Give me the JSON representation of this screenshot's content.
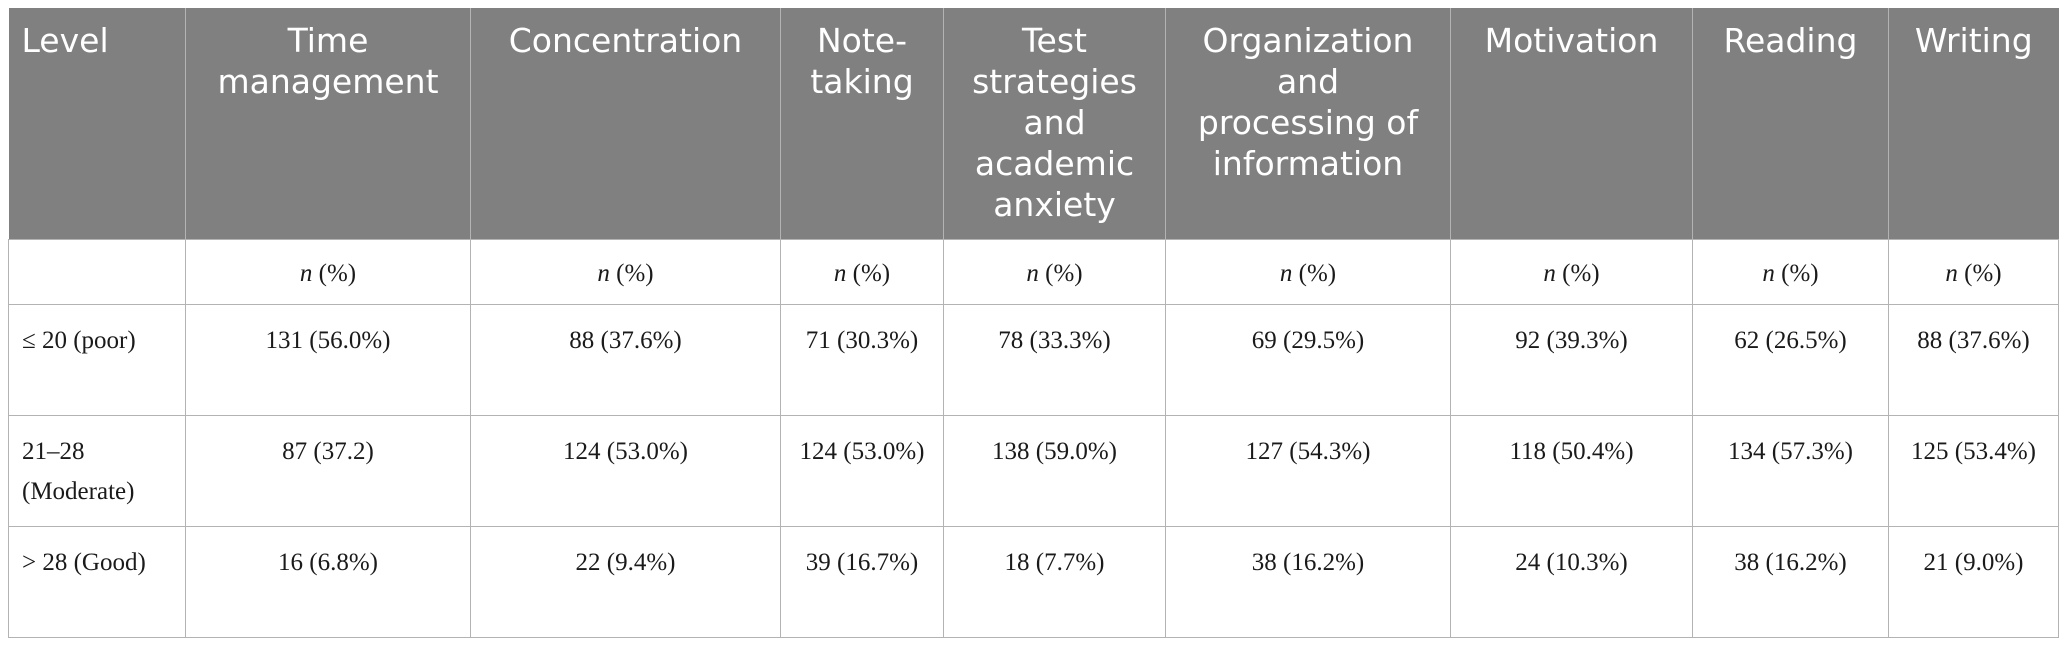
{
  "table": {
    "headers": [
      "Level",
      "Time management",
      "Concentration",
      "Note-taking",
      "Test strategies and academic anxiety",
      "Organization and processing of information",
      "Motivation",
      "Reading",
      "Writing"
    ],
    "header_lines": [
      [
        "Level"
      ],
      [
        "Time",
        "management"
      ],
      [
        "Concentration"
      ],
      [
        "Note-",
        "taking"
      ],
      [
        "Test",
        "strategies",
        "and",
        "academic",
        "anxiety"
      ],
      [
        "Organization",
        "and",
        "processing of",
        "information"
      ],
      [
        "Motivation"
      ],
      [
        "Reading"
      ],
      [
        "Writing"
      ]
    ],
    "subheader": {
      "n_symbol": "n",
      "pct_label": "(%)"
    },
    "rows": [
      {
        "level": "≤ 20 (poor)",
        "cells": [
          "131 (56.0%)",
          "88 (37.6%)",
          "71 (30.3%)",
          "78 (33.3%)",
          "69 (29.5%)",
          "92 (39.3%)",
          "62 (26.5%)",
          "88 (37.6%)"
        ]
      },
      {
        "level": "21–28 (Moderate)",
        "cells": [
          "87 (37.2)",
          "124 (53.0%)",
          "124 (53.0%)",
          "138 (59.0%)",
          "127 (54.3%)",
          "118 (50.4%)",
          "134 (57.3%)",
          "125 (53.4%)"
        ]
      },
      {
        "level": "> 28 (Good)",
        "cells": [
          "16 (6.8%)",
          "22 (9.4%)",
          "39 (16.7%)",
          "18 (7.7%)",
          "38 (16.2%)",
          "24 (10.3%)",
          "38 (16.2%)",
          "21 (9.0%)"
        ]
      }
    ],
    "colors": {
      "header_bg": "#808080",
      "header_text": "#ffffff",
      "grid": "#b3b3b3"
    }
  }
}
